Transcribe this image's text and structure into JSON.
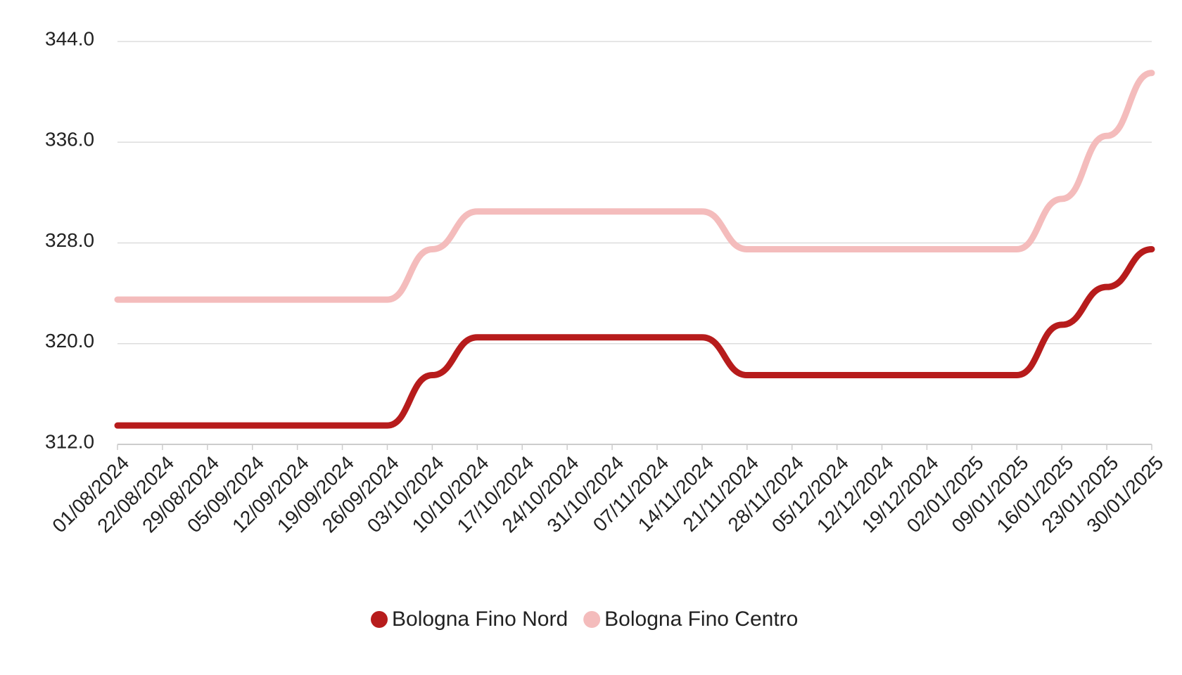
{
  "chart_data": {
    "type": "line",
    "categories": [
      "01/08/2024",
      "22/08/2024",
      "29/08/2024",
      "05/09/2024",
      "12/09/2024",
      "19/09/2024",
      "26/09/2024",
      "03/10/2024",
      "10/10/2024",
      "17/10/2024",
      "24/10/2024",
      "31/10/2024",
      "07/11/2024",
      "14/11/2024",
      "21/11/2024",
      "28/11/2024",
      "05/12/2024",
      "12/12/2024",
      "19/12/2024",
      "02/01/2025",
      "09/01/2025",
      "16/01/2025",
      "23/01/2025",
      "30/01/2025"
    ],
    "series": [
      {
        "name": "Bologna Fino Nord",
        "color": "#b71c1c",
        "values": [
          313.5,
          313.5,
          313.5,
          313.5,
          313.5,
          313.5,
          313.5,
          317.5,
          320.5,
          320.5,
          320.5,
          320.5,
          320.5,
          320.5,
          317.5,
          317.5,
          317.5,
          317.5,
          317.5,
          317.5,
          317.5,
          321.5,
          324.5,
          327.5
        ]
      },
      {
        "name": "Bologna Fino Centro",
        "color": "#f4bcbc",
        "values": [
          323.5,
          323.5,
          323.5,
          323.5,
          323.5,
          323.5,
          323.5,
          327.5,
          330.5,
          330.5,
          330.5,
          330.5,
          330.5,
          330.5,
          327.5,
          327.5,
          327.5,
          327.5,
          327.5,
          327.5,
          327.5,
          331.5,
          336.5,
          341.5
        ]
      }
    ],
    "ylim": [
      312,
      344
    ],
    "yticks": [
      {
        "value": 312,
        "label": "312.0"
      },
      {
        "value": 320,
        "label": "320.0"
      },
      {
        "value": 328,
        "label": "328.0"
      },
      {
        "value": 336,
        "label": "336.0"
      },
      {
        "value": 344,
        "label": "344.0"
      }
    ],
    "grid": true,
    "legend": "bottom"
  }
}
